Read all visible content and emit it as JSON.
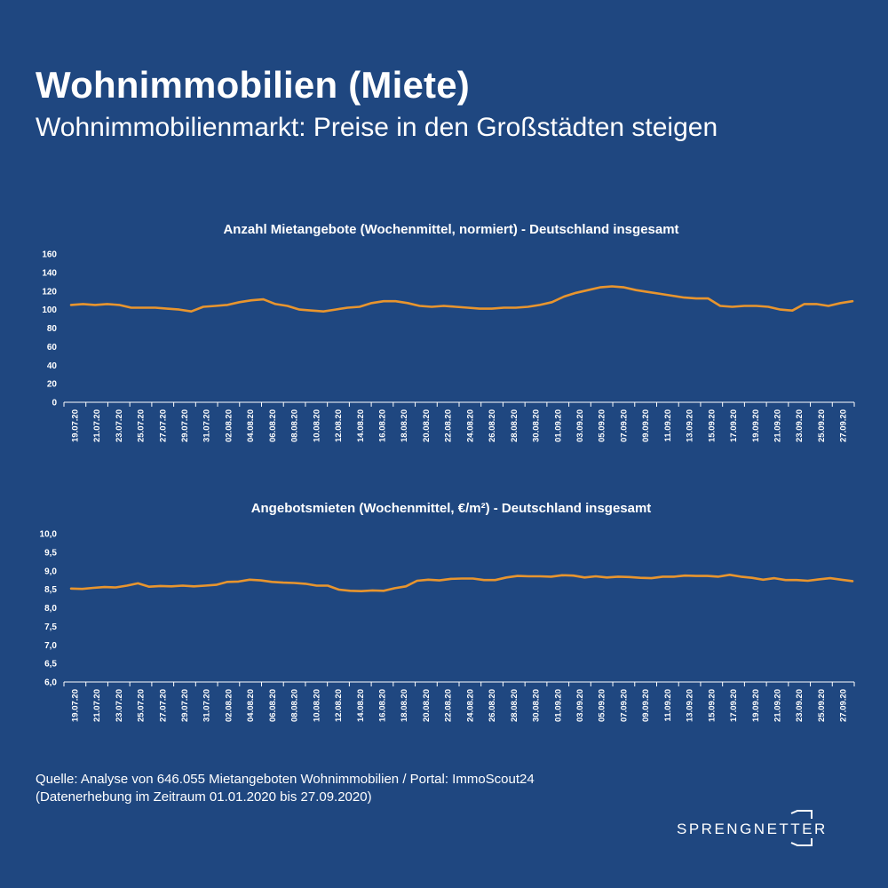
{
  "header": {
    "title": "Wohnimmobilien (Miete)",
    "subtitle": "Wohnimmobilienmarkt: Preise in den Großstädten steigen"
  },
  "chart_data": [
    {
      "type": "line",
      "title": "Anzahl Mietangebote (Wochenmittel, normiert) - Deutschland insgesamt",
      "xlabel": "",
      "ylabel": "",
      "ylim": [
        0,
        160
      ],
      "yticks": [
        "0",
        "20",
        "40",
        "60",
        "80",
        "100",
        "120",
        "140",
        "160"
      ],
      "grid": false,
      "legend": "none",
      "color": "#e8952e",
      "x_tick_labels": [
        "19.07.20",
        "21.07.20",
        "23.07.20",
        "25.07.20",
        "27.07.20",
        "29.07.20",
        "31.07.20",
        "02.08.20",
        "04.08.20",
        "06.08.20",
        "08.08.20",
        "10.08.20",
        "12.08.20",
        "14.08.20",
        "16.08.20",
        "18.08.20",
        "20.08.20",
        "22.08.20",
        "24.08.20",
        "26.08.20",
        "28.08.20",
        "30.08.20",
        "01.09.20",
        "03.09.20",
        "05.09.20",
        "07.09.20",
        "09.09.20",
        "11.09.20",
        "13.09.20",
        "15.09.20",
        "17.09.20",
        "19.09.20",
        "21.09.20",
        "23.09.20",
        "25.09.20",
        "27.09.20"
      ],
      "values": [
        105,
        106,
        105,
        106,
        105,
        102,
        102,
        102,
        101,
        100,
        98,
        103,
        104,
        105,
        108,
        110,
        111,
        106,
        104,
        100,
        99,
        98,
        100,
        102,
        103,
        107,
        109,
        109,
        107,
        104,
        103,
        104,
        103,
        102,
        101,
        101,
        102,
        102,
        103,
        105,
        108,
        114,
        118,
        121,
        124,
        125,
        124,
        121,
        119,
        117,
        115,
        113,
        112,
        112,
        104,
        103,
        104,
        104,
        103,
        100,
        99,
        106,
        106,
        104,
        107,
        109
      ]
    },
    {
      "type": "line",
      "title": "Angebotsmieten (Wochenmittel, €/m²) - Deutschland insgesamt",
      "xlabel": "",
      "ylabel": "",
      "ylim": [
        6.0,
        10.0
      ],
      "yticks": [
        "6,0",
        "6,5",
        "7,0",
        "7,5",
        "8,0",
        "8,5",
        "9,0",
        "9,5",
        "10,0"
      ],
      "grid": false,
      "legend": "none",
      "color": "#e8952e",
      "x_tick_labels": [
        "19.07.20",
        "21.07.20",
        "23.07.20",
        "25.07.20",
        "27.07.20",
        "29.07.20",
        "31.07.20",
        "02.08.20",
        "04.08.20",
        "06.08.20",
        "08.08.20",
        "10.08.20",
        "12.08.20",
        "14.08.20",
        "16.08.20",
        "18.08.20",
        "20.08.20",
        "22.08.20",
        "24.08.20",
        "26.08.20",
        "28.08.20",
        "30.08.20",
        "01.09.20",
        "03.09.20",
        "05.09.20",
        "07.09.20",
        "09.09.20",
        "11.09.20",
        "13.09.20",
        "15.09.20",
        "17.09.20",
        "19.09.20",
        "21.09.20",
        "23.09.20",
        "25.09.20",
        "27.09.20"
      ],
      "values": [
        8.52,
        8.51,
        8.54,
        8.56,
        8.55,
        8.6,
        8.66,
        8.57,
        8.59,
        8.58,
        8.6,
        8.58,
        8.6,
        8.62,
        8.7,
        8.71,
        8.76,
        8.74,
        8.7,
        8.68,
        8.67,
        8.65,
        8.6,
        8.6,
        8.49,
        8.46,
        8.45,
        8.47,
        8.46,
        8.53,
        8.58,
        8.73,
        8.76,
        8.74,
        8.78,
        8.79,
        8.79,
        8.75,
        8.75,
        8.82,
        8.86,
        8.85,
        8.85,
        8.84,
        8.88,
        8.87,
        8.82,
        8.85,
        8.82,
        8.84,
        8.83,
        8.81,
        8.8,
        8.84,
        8.84,
        8.87,
        8.86,
        8.86,
        8.84,
        8.89,
        8.84,
        8.81,
        8.76,
        8.8,
        8.75,
        8.75,
        8.73,
        8.77,
        8.8,
        8.76,
        8.72
      ]
    }
  ],
  "footer": {
    "source_line1": "Quelle: Analyse von 646.055 Mietangeboten Wohnimmobilien / Portal: ImmoScout24",
    "source_line2": "(Datenerhebung im Zeitraum 01.01.2020 bis  27.09.2020)",
    "logo_text": "SPRENGNETTER"
  }
}
